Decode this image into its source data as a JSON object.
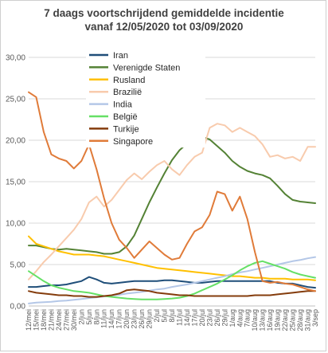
{
  "chart_data": {
    "type": "line",
    "title": "7 daags voortschrijdend gemiddelde incidentie",
    "subtitle": "vanaf 12/05/2020 tot 03/09/2020",
    "xlabel": "",
    "ylabel": "",
    "ylim": [
      0,
      30
    ],
    "yticks": [
      "0,00",
      "5,00",
      "10,00",
      "15,00",
      "20,00",
      "25,00",
      "30,00"
    ],
    "grid": true,
    "legend_placement": "top-left",
    "x_labels": [
      "12/mei",
      "15/mei",
      "18/mei",
      "21/mei",
      "24/mei",
      "27/mei",
      "30/mei",
      "2/jun",
      "5/jun",
      "8/jun",
      "11/jun",
      "14/jun",
      "17/jun",
      "20/jun",
      "23/jun",
      "26/jun",
      "29/jun",
      "2/jul",
      "5/jul",
      "8/jul",
      "11/jul",
      "14/jul",
      "17/jul",
      "20/jul",
      "23/jul",
      "26/jul",
      "29/jul",
      "1/aug",
      "4/aug",
      "7/aug",
      "10/aug",
      "13/aug",
      "16/aug",
      "19/aug",
      "22/aug",
      "25/aug",
      "28/aug",
      "31/aug",
      "3/sep"
    ],
    "x": [
      0,
      3,
      6,
      9,
      12,
      15,
      18,
      21,
      24,
      27,
      30,
      33,
      36,
      39,
      42,
      45,
      48,
      51,
      54,
      57,
      60,
      63,
      66,
      69,
      72,
      75,
      78,
      81,
      84,
      87,
      90,
      93,
      96,
      99,
      102,
      105,
      108,
      111,
      114
    ],
    "series": [
      {
        "name": "Iran",
        "color": "#1f4e79",
        "values": [
          2.3,
          2.3,
          2.4,
          2.5,
          2.5,
          2.6,
          2.8,
          3.0,
          3.5,
          3.2,
          2.8,
          2.7,
          2.8,
          2.9,
          3.0,
          3.0,
          3.0,
          3.0,
          3.1,
          3.1,
          3.0,
          2.9,
          2.8,
          2.8,
          2.9,
          3.0,
          3.0,
          3.0,
          3.0,
          3.0,
          3.0,
          3.0,
          3.0,
          2.8,
          2.7,
          2.7,
          2.5,
          2.3,
          2.2
        ]
      },
      {
        "name": "Verenigde Staten",
        "color": "#548235",
        "values": [
          7.3,
          7.3,
          7.1,
          6.9,
          6.8,
          6.9,
          6.8,
          6.7,
          6.6,
          6.5,
          6.3,
          6.3,
          6.5,
          7.2,
          8.5,
          10.5,
          12.5,
          14.3,
          16.0,
          17.6,
          18.8,
          19.6,
          20.1,
          20.4,
          20.1,
          19.3,
          18.5,
          17.5,
          16.8,
          16.3,
          16.0,
          15.8,
          15.4,
          14.5,
          13.5,
          12.8,
          12.6,
          12.5,
          12.4
        ]
      },
      {
        "name": "Rusland",
        "color": "#ffc000",
        "values": [
          8.4,
          7.5,
          7.2,
          6.9,
          6.6,
          6.4,
          6.2,
          6.2,
          6.2,
          6.1,
          6.0,
          5.8,
          5.6,
          5.4,
          5.2,
          5.0,
          4.8,
          4.6,
          4.5,
          4.4,
          4.3,
          4.2,
          4.1,
          4.0,
          3.9,
          3.8,
          3.7,
          3.6,
          3.6,
          3.5,
          3.4,
          3.4,
          3.3,
          3.3,
          3.3,
          3.2,
          3.2,
          3.2,
          3.1
        ]
      },
      {
        "name": "Brazilië",
        "color": "#f8cbad",
        "values": [
          3.2,
          4.2,
          5.3,
          6.2,
          7.2,
          8.2,
          9.2,
          10.5,
          12.5,
          13.2,
          12.0,
          12.8,
          14.0,
          15.2,
          16.0,
          15.3,
          16.2,
          17.0,
          17.5,
          16.5,
          15.8,
          17.0,
          18.0,
          18.5,
          21.5,
          22.0,
          21.8,
          21.0,
          21.5,
          21.0,
          20.5,
          19.5,
          18.0,
          18.2,
          17.8,
          18.0,
          17.5,
          19.2,
          19.2
        ]
      },
      {
        "name": "India",
        "color": "#b4c7e7",
        "values": [
          0.3,
          0.4,
          0.45,
          0.5,
          0.6,
          0.65,
          0.75,
          0.85,
          0.95,
          1.05,
          1.15,
          1.25,
          1.35,
          1.5,
          1.6,
          1.7,
          1.85,
          2.0,
          2.1,
          2.3,
          2.45,
          2.6,
          2.8,
          3.0,
          3.2,
          3.4,
          3.6,
          3.85,
          4.05,
          4.2,
          4.4,
          4.6,
          4.8,
          5.0,
          5.2,
          5.4,
          5.55,
          5.75,
          5.9
        ]
      },
      {
        "name": "België",
        "color": "#66e066",
        "values": [
          4.2,
          3.6,
          3.0,
          2.5,
          2.2,
          2.0,
          1.8,
          1.7,
          1.6,
          1.4,
          1.2,
          1.1,
          1.0,
          0.9,
          0.85,
          0.8,
          0.8,
          0.8,
          0.85,
          0.9,
          1.0,
          1.2,
          1.5,
          1.9,
          2.3,
          2.7,
          3.2,
          3.7,
          4.3,
          4.8,
          5.2,
          5.4,
          5.1,
          4.8,
          4.5,
          4.1,
          3.8,
          3.6,
          3.4
        ]
      },
      {
        "name": "Turkije",
        "color": "#843c0c",
        "values": [
          1.8,
          1.6,
          1.5,
          1.4,
          1.3,
          1.3,
          1.2,
          1.2,
          1.1,
          1.1,
          1.2,
          1.3,
          1.5,
          1.9,
          2.0,
          1.9,
          1.8,
          1.6,
          1.5,
          1.4,
          1.3,
          1.3,
          1.2,
          1.2,
          1.2,
          1.2,
          1.2,
          1.2,
          1.2,
          1.2,
          1.3,
          1.3,
          1.3,
          1.4,
          1.5,
          1.6,
          1.7,
          1.8,
          1.8
        ]
      },
      {
        "name": "Singapore",
        "color": "#e07b39",
        "values": [
          25.8,
          25.2,
          21.0,
          18.3,
          17.8,
          17.5,
          16.6,
          17.5,
          19.5,
          16.5,
          13.0,
          10.0,
          8.0,
          7.0,
          5.8,
          6.8,
          7.8,
          7.0,
          6.2,
          5.6,
          5.8,
          7.5,
          9.0,
          9.5,
          11.0,
          13.8,
          13.5,
          11.5,
          13.2,
          10.5,
          6.5,
          3.0,
          2.8,
          2.9,
          2.7,
          2.6,
          2.3,
          2.0,
          1.8
        ]
      }
    ]
  }
}
